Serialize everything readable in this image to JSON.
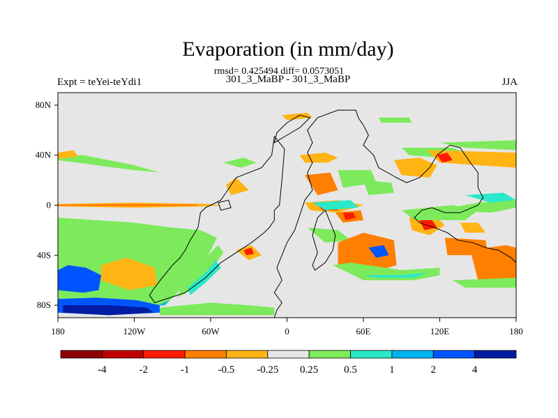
{
  "title": "Evaporation (in mm/day)",
  "stats": "rmsd= 0.425494 diff= 0.0573051",
  "subtitle": "301_3_MaBP - 301_3_MaBP",
  "left_label": "Expt = teYei-teYdi1",
  "right_label": "JJA",
  "colors": {
    "background": "#e6e6e6",
    "coast": "#000000",
    "levels": [
      "#8b0000",
      "#c00000",
      "#ff1a00",
      "#ff7f00",
      "#ffb414",
      "#e6e6e6",
      "#7dea5c",
      "#2ae8c8",
      "#00b4f0",
      "#0055ff",
      "#001ca0"
    ]
  },
  "chart_data": {
    "type": "filled contour map",
    "x_axis": {
      "range": [
        -180,
        180
      ],
      "tick_labels": [
        "180",
        "120W",
        "60W",
        "0",
        "60E",
        "120E",
        "180"
      ]
    },
    "y_axis": {
      "range": [
        -90,
        90
      ],
      "tick_labels": [
        "80N",
        "40N",
        "0",
        "40S",
        "80S"
      ]
    },
    "colorbar": {
      "labels": [
        "-4",
        "-2",
        "-1",
        "-0.5",
        "-0.25",
        "0.25",
        "0.5",
        "1",
        "2",
        "4"
      ]
    }
  }
}
